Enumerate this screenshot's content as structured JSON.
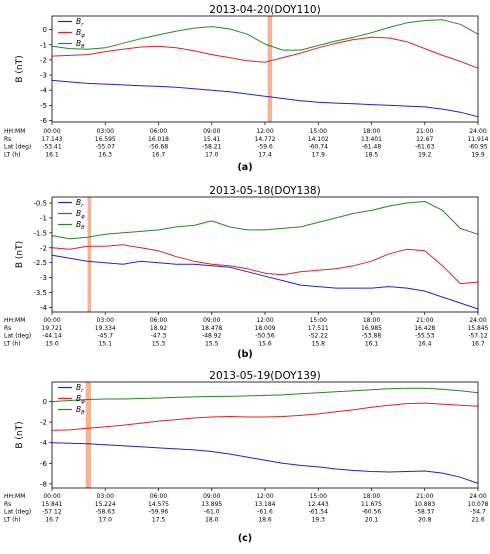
{
  "figure": {
    "captions": [
      "(a)",
      "(b)",
      "(c)"
    ]
  },
  "chart_data": [
    {
      "type": "line",
      "title": "2013-04-20(DOY110)",
      "xlabel": "",
      "ylabel": "B (nT)",
      "xlim": [
        0,
        24
      ],
      "ylim": [
        -6.1,
        0.9
      ],
      "yticks": [
        -6,
        -5,
        -4,
        -3,
        -2,
        -1,
        0
      ],
      "highlight_hours": [
        12.15,
        12.4
      ],
      "legend": "top-left",
      "info_labels": [
        "HH:MM",
        "Rs",
        "Lat (deg)",
        "LT (h)"
      ],
      "info_columns": [
        {
          "x": 0,
          "values": [
            "00:00",
            "17.143",
            "-53.41",
            "16.1"
          ]
        },
        {
          "x": 3,
          "values": [
            "03:00",
            "16.595",
            "-55.07",
            "16.3"
          ]
        },
        {
          "x": 6,
          "values": [
            "06:00",
            "16.018",
            "-56.68",
            "16.7"
          ]
        },
        {
          "x": 9,
          "values": [
            "09:00",
            "15.41",
            "-58.21",
            "17.0"
          ]
        },
        {
          "x": 12,
          "values": [
            "12:00",
            "14.772",
            "-59.6",
            "17.4"
          ]
        },
        {
          "x": 15,
          "values": [
            "15:00",
            "14.102",
            "-60.74",
            "17.9"
          ]
        },
        {
          "x": 18,
          "values": [
            "18:00",
            "13.401",
            "-61.48",
            "18.5"
          ]
        },
        {
          "x": 21,
          "values": [
            "21:00",
            "12.67",
            "-61.63",
            "19.2"
          ]
        },
        {
          "x": 24,
          "values": [
            "24:00",
            "11.914",
            "-60.95",
            "19.9"
          ]
        }
      ],
      "series": [
        {
          "name": "B_r",
          "label_main": "B",
          "label_sub": "r",
          "color": "#1f1fe0",
          "x": [
            0,
            1,
            2,
            3,
            4,
            5,
            6,
            7,
            8,
            9,
            10,
            11,
            12,
            13,
            14,
            15,
            16,
            17,
            18,
            19,
            20,
            21,
            22,
            23,
            24
          ],
          "y": [
            -3.35,
            -3.45,
            -3.55,
            -3.6,
            -3.65,
            -3.7,
            -3.75,
            -3.8,
            -3.9,
            -4.0,
            -4.1,
            -4.25,
            -4.4,
            -4.55,
            -4.7,
            -4.8,
            -4.85,
            -4.9,
            -4.95,
            -5.0,
            -5.05,
            -5.1,
            -5.25,
            -5.45,
            -5.75
          ]
        },
        {
          "name": "B_phi",
          "label_main": "B",
          "label_sub": "φ",
          "color": "#e81e1e",
          "x": [
            0,
            1,
            2,
            3,
            4,
            5,
            6,
            7,
            8,
            9,
            10,
            11,
            12,
            13,
            14,
            15,
            16,
            17,
            18,
            19,
            20,
            21,
            22,
            23,
            24
          ],
          "y": [
            -1.75,
            -1.7,
            -1.65,
            -1.45,
            -1.3,
            -1.15,
            -1.1,
            -1.2,
            -1.4,
            -1.65,
            -1.85,
            -2.05,
            -2.15,
            -1.85,
            -1.55,
            -1.2,
            -0.9,
            -0.65,
            -0.5,
            -0.55,
            -0.8,
            -1.25,
            -1.7,
            -2.1,
            -2.55
          ]
        },
        {
          "name": "B_theta",
          "label_main": "B",
          "label_sub": "θ",
          "color": "#1e8c1e",
          "x": [
            0,
            1,
            2,
            3,
            4,
            5,
            6,
            7,
            8,
            9,
            10,
            11,
            12,
            13,
            14,
            15,
            16,
            17,
            18,
            19,
            20,
            21,
            22,
            23,
            24
          ],
          "y": [
            -1.1,
            -1.25,
            -1.3,
            -1.2,
            -0.9,
            -0.6,
            -0.35,
            -0.1,
            0.1,
            0.2,
            0.05,
            -0.3,
            -0.95,
            -1.35,
            -1.35,
            -1.05,
            -0.75,
            -0.5,
            -0.2,
            0.15,
            0.45,
            0.6,
            0.65,
            0.35,
            -0.3
          ]
        }
      ]
    },
    {
      "type": "line",
      "title": "2013-05-18(DOY138)",
      "xlabel": "",
      "ylabel": "B (nT)",
      "xlim": [
        0,
        24
      ],
      "ylim": [
        -4.15,
        -0.3
      ],
      "yticks": [
        -4.0,
        -3.5,
        -3.0,
        -2.5,
        -2.0,
        -1.5,
        -1.0,
        -0.5
      ],
      "highlight_hours": [
        2.0,
        2.2
      ],
      "legend": "top-left",
      "info_labels": [
        "HH:MM",
        "Rs",
        "Lat (deg)",
        "LT (h)"
      ],
      "info_columns": [
        {
          "x": 0,
          "values": [
            "00:00",
            "19.721",
            "-44.14",
            "15.0"
          ]
        },
        {
          "x": 3,
          "values": [
            "03:00",
            "19.334",
            "-45.7",
            "15.1"
          ]
        },
        {
          "x": 6,
          "values": [
            "06:00",
            "18.92",
            "-47.3",
            "15.3"
          ]
        },
        {
          "x": 9,
          "values": [
            "09:00",
            "18.478",
            "-48.92",
            "15.5"
          ]
        },
        {
          "x": 12,
          "values": [
            "12:00",
            "18.009",
            "-50.56",
            "15.6"
          ]
        },
        {
          "x": 15,
          "values": [
            "15:00",
            "17.511",
            "-52.22",
            "15.8"
          ]
        },
        {
          "x": 18,
          "values": [
            "18:00",
            "16.985",
            "-53.88",
            "16.1"
          ]
        },
        {
          "x": 21,
          "values": [
            "21:00",
            "16.428",
            "-55.53",
            "16.4"
          ]
        },
        {
          "x": 24,
          "values": [
            "24:00",
            "15.845",
            "-57.12",
            "16.7"
          ]
        }
      ],
      "series": [
        {
          "name": "B_r",
          "label_main": "B",
          "label_sub": "r",
          "color": "#1f1fe0",
          "x": [
            0,
            1,
            2,
            3,
            4,
            5,
            6,
            7,
            8,
            9,
            10,
            11,
            12,
            13,
            14,
            15,
            16,
            17,
            18,
            19,
            20,
            21,
            22,
            23,
            24
          ],
          "y": [
            -2.25,
            -2.35,
            -2.45,
            -2.5,
            -2.55,
            -2.45,
            -2.5,
            -2.55,
            -2.55,
            -2.6,
            -2.65,
            -2.8,
            -2.95,
            -3.1,
            -3.25,
            -3.3,
            -3.35,
            -3.35,
            -3.35,
            -3.3,
            -3.35,
            -3.45,
            -3.65,
            -3.85,
            -4.05
          ]
        },
        {
          "name": "B_phi",
          "label_main": "B",
          "label_sub": "φ",
          "color": "#e81e1e",
          "x": [
            0,
            1,
            2,
            3,
            4,
            5,
            6,
            7,
            8,
            9,
            10,
            11,
            12,
            13,
            14,
            15,
            16,
            17,
            18,
            19,
            20,
            21,
            22,
            23,
            24
          ],
          "y": [
            -2.0,
            -2.05,
            -1.95,
            -1.95,
            -1.9,
            -2.0,
            -2.1,
            -2.3,
            -2.45,
            -2.55,
            -2.6,
            -2.7,
            -2.85,
            -2.9,
            -2.8,
            -2.75,
            -2.7,
            -2.6,
            -2.45,
            -2.2,
            -2.05,
            -2.1,
            -2.6,
            -3.2,
            -3.15
          ]
        },
        {
          "name": "B_theta",
          "label_main": "B",
          "label_sub": "θ",
          "color": "#1e8c1e",
          "x": [
            0,
            1,
            2,
            3,
            4,
            5,
            6,
            7,
            8,
            9,
            10,
            11,
            12,
            13,
            14,
            15,
            16,
            17,
            18,
            19,
            20,
            21,
            22,
            23,
            24
          ],
          "y": [
            -1.6,
            -1.7,
            -1.65,
            -1.55,
            -1.5,
            -1.45,
            -1.4,
            -1.3,
            -1.25,
            -1.1,
            -1.3,
            -1.4,
            -1.4,
            -1.35,
            -1.3,
            -1.15,
            -1.0,
            -0.85,
            -0.75,
            -0.6,
            -0.5,
            -0.45,
            -0.75,
            -1.35,
            -1.55
          ]
        }
      ]
    },
    {
      "type": "line",
      "title": "2013-05-19(DOY139)",
      "xlabel": "",
      "ylabel": "B (nT)",
      "xlim": [
        0,
        24
      ],
      "ylim": [
        -8.4,
        1.9
      ],
      "yticks": [
        -8,
        -6,
        -4,
        -2,
        0
      ],
      "highlight_hours": [
        1.9,
        2.2
      ],
      "legend": "top-left",
      "info_labels": [
        "HH:MM",
        "Rs",
        "Lat (deg)",
        "LT (h)"
      ],
      "info_columns": [
        {
          "x": 0,
          "values": [
            "00:00",
            "15.841",
            "-57.12",
            "16.7"
          ]
        },
        {
          "x": 3,
          "values": [
            "03:00",
            "15.224",
            "-58.63",
            "17.0"
          ]
        },
        {
          "x": 6,
          "values": [
            "06:00",
            "14.575",
            "-59.96",
            "17.5"
          ]
        },
        {
          "x": 9,
          "values": [
            "09:00",
            "13.895",
            "-61.0",
            "18.0"
          ]
        },
        {
          "x": 12,
          "values": [
            "12:00",
            "13.184",
            "-61.6",
            "18.6"
          ]
        },
        {
          "x": 15,
          "values": [
            "15:00",
            "12.443",
            "-61.54",
            "19.3"
          ]
        },
        {
          "x": 18,
          "values": [
            "18:00",
            "11.675",
            "-60.56",
            "20.1"
          ]
        },
        {
          "x": 21,
          "values": [
            "21:00",
            "10.883",
            "-58.37",
            "20.8"
          ]
        },
        {
          "x": 24,
          "values": [
            "24:00",
            "10.078",
            "-54.7",
            "21.6"
          ]
        }
      ],
      "series": [
        {
          "name": "B_r",
          "label_main": "B",
          "label_sub": "r",
          "color": "#1f1fe0",
          "x": [
            0,
            1,
            2,
            3,
            4,
            5,
            6,
            7,
            8,
            9,
            10,
            11,
            12,
            13,
            14,
            15,
            16,
            17,
            18,
            19,
            20,
            21,
            22,
            23,
            24
          ],
          "y": [
            -4.0,
            -4.05,
            -4.1,
            -4.2,
            -4.3,
            -4.4,
            -4.5,
            -4.6,
            -4.7,
            -4.85,
            -5.1,
            -5.4,
            -5.7,
            -6.0,
            -6.2,
            -6.35,
            -6.55,
            -6.7,
            -6.8,
            -6.85,
            -6.8,
            -6.75,
            -6.95,
            -7.35,
            -7.95
          ]
        },
        {
          "name": "B_phi",
          "label_main": "B",
          "label_sub": "φ",
          "color": "#e81e1e",
          "x": [
            0,
            1,
            2,
            3,
            4,
            5,
            6,
            7,
            8,
            9,
            10,
            11,
            12,
            13,
            14,
            15,
            16,
            17,
            18,
            19,
            20,
            21,
            22,
            23,
            24
          ],
          "y": [
            -2.8,
            -2.75,
            -2.6,
            -2.45,
            -2.3,
            -2.1,
            -1.9,
            -1.75,
            -1.6,
            -1.5,
            -1.45,
            -1.5,
            -1.5,
            -1.45,
            -1.35,
            -1.2,
            -1.0,
            -0.8,
            -0.55,
            -0.35,
            -0.2,
            -0.15,
            -0.25,
            -0.35,
            -0.45
          ]
        },
        {
          "name": "B_theta",
          "label_main": "B",
          "label_sub": "θ",
          "color": "#1e8c1e",
          "x": [
            0,
            1,
            2,
            3,
            4,
            5,
            6,
            7,
            8,
            9,
            10,
            11,
            12,
            13,
            14,
            15,
            16,
            17,
            18,
            19,
            20,
            21,
            22,
            23,
            24
          ],
          "y": [
            0.0,
            0.1,
            0.2,
            0.25,
            0.25,
            0.3,
            0.35,
            0.4,
            0.45,
            0.5,
            0.5,
            0.55,
            0.6,
            0.65,
            0.75,
            0.85,
            0.95,
            1.05,
            1.15,
            1.25,
            1.3,
            1.3,
            1.2,
            1.05,
            0.85
          ]
        }
      ]
    }
  ]
}
